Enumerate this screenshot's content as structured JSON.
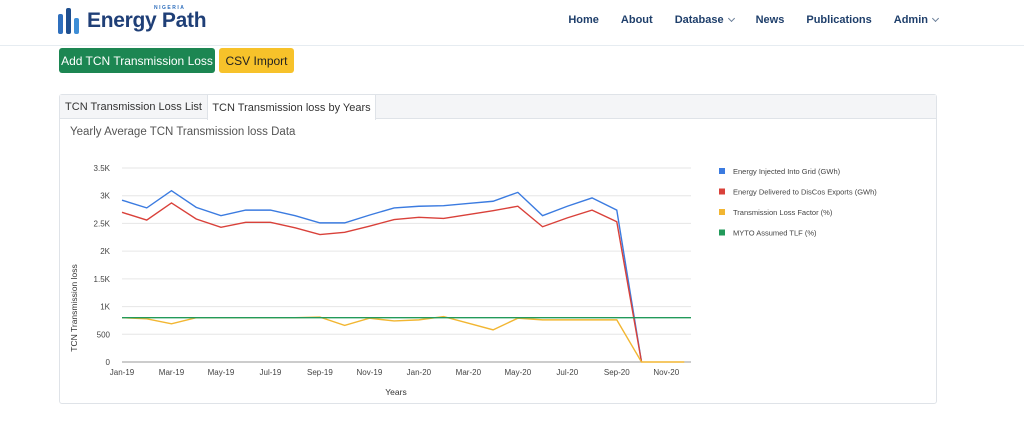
{
  "nav": {
    "logo_text": "Energy Path",
    "logo_tag": "NIGERIA",
    "items": [
      {
        "label": "Home",
        "dropdown": false
      },
      {
        "label": "About",
        "dropdown": false
      },
      {
        "label": "Database",
        "dropdown": true
      },
      {
        "label": "News",
        "dropdown": false
      },
      {
        "label": "Publications",
        "dropdown": false
      },
      {
        "label": "Admin",
        "dropdown": true
      }
    ]
  },
  "actions": {
    "add_label": "Add TCN Transmission Loss",
    "csv_label": "CSV Import"
  },
  "colors": {
    "add_button": "#1c8652",
    "csv_button": "#f7c22a"
  },
  "tabs": [
    {
      "label": "TCN Transmission Loss List",
      "active": false
    },
    {
      "label": "TCN Transmission loss by Years",
      "active": true
    }
  ],
  "panel_title": "Yearly Average TCN Transmission loss Data",
  "chart_data": {
    "type": "line",
    "title": "",
    "xlabel": "Years",
    "ylabel": "TCN Transmission loss",
    "ylim": [
      0,
      3500
    ],
    "yticks": [
      0,
      500,
      1000,
      1500,
      2000,
      2500,
      3000,
      3500
    ],
    "ytick_labels": [
      "0",
      "500",
      "1K",
      "1.5K",
      "2K",
      "2.5K",
      "3K",
      "3.5K"
    ],
    "x": [
      "Jan-19",
      "Feb-19",
      "Mar-19",
      "Apr-19",
      "May-19",
      "Jun-19",
      "Jul-19",
      "Aug-19",
      "Sep-19",
      "Oct-19",
      "Nov-19",
      "Dec-19",
      "Jan-20",
      "Feb-20",
      "Mar-20",
      "Apr-20",
      "May-20",
      "Jun-20",
      "Jul-20",
      "Aug-20",
      "Sep-20",
      "Oct-20",
      "Nov-20",
      "Dec-20"
    ],
    "xtick_labels": [
      "Jan-19",
      "Mar-19",
      "May-19",
      "Jul-19",
      "Sep-19",
      "Nov-19",
      "Jan-20",
      "Mar-20",
      "May-20",
      "Jul-20",
      "Sep-20",
      "Nov-20"
    ],
    "legend_position": "right",
    "grid": true,
    "series": [
      {
        "name": "Energy Injected Into Grid (GWh)",
        "color": "#3b7be0",
        "values": [
          2920,
          2780,
          3090,
          2790,
          2640,
          2740,
          2740,
          2640,
          2510,
          2510,
          2650,
          2780,
          2810,
          2820,
          2860,
          2900,
          3060,
          2640,
          2810,
          2960,
          2740,
          0,
          0,
          0
        ]
      },
      {
        "name": "Energy Delivered to DisCos Exports (GWh)",
        "color": "#d9413a",
        "values": [
          2700,
          2560,
          2870,
          2580,
          2430,
          2520,
          2520,
          2420,
          2300,
          2340,
          2450,
          2570,
          2610,
          2590,
          2660,
          2730,
          2810,
          2440,
          2600,
          2740,
          2530,
          0,
          0,
          0
        ]
      },
      {
        "name": "Transmission Loss Factor (%)",
        "color": "#f2b632",
        "values": [
          800,
          780,
          690,
          800,
          800,
          800,
          800,
          800,
          810,
          660,
          790,
          740,
          760,
          820,
          700,
          580,
          790,
          760,
          760,
          760,
          760,
          0,
          0,
          0
        ]
      },
      {
        "name": "MYTO Assumed TLF (%)",
        "color": "#229a5a",
        "values": [
          800,
          800,
          800,
          800,
          800,
          800,
          800,
          800,
          800,
          800,
          800,
          800,
          800,
          800,
          800,
          800,
          800,
          800,
          800,
          800,
          800,
          800,
          800,
          800
        ]
      }
    ]
  }
}
